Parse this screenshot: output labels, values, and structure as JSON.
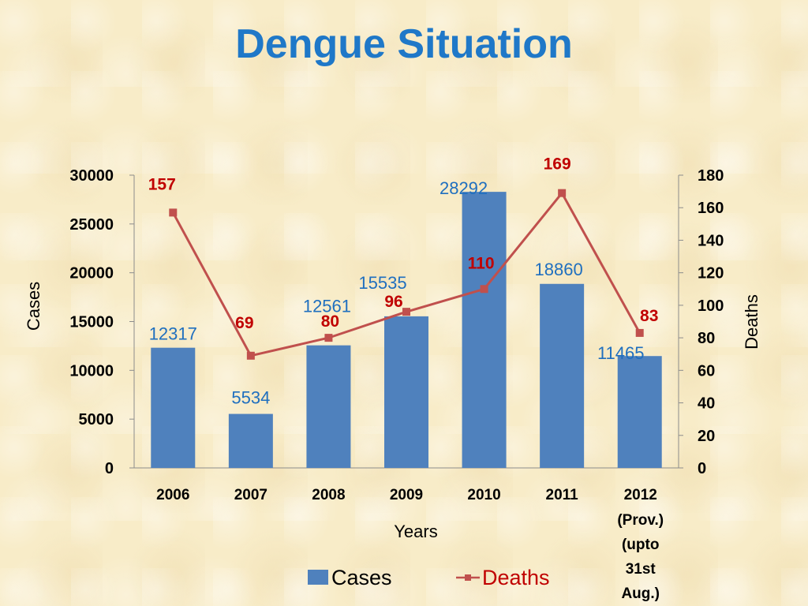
{
  "title": "Dengue Situation",
  "chart_data": {
    "type": "bar",
    "title": "Dengue Situation",
    "categories": [
      "2006",
      "2007",
      "2008",
      "2009",
      "2010",
      "2011",
      "2012"
    ],
    "category_extra_lines": {
      "2012": [
        "(Prov.)",
        "(upto",
        "31st",
        "Aug.)"
      ]
    },
    "xlabel": "Years",
    "ylabel": "Cases",
    "y2label": "Deaths",
    "ylim": [
      0,
      30000
    ],
    "y2lim": [
      0,
      180
    ],
    "y_ticks": [
      0,
      5000,
      10000,
      15000,
      20000,
      25000,
      30000
    ],
    "y2_ticks": [
      0,
      20,
      40,
      60,
      80,
      100,
      120,
      140,
      160,
      180
    ],
    "series": [
      {
        "name": "Cases",
        "type": "bar",
        "axis": "left",
        "color": "#4f81bd",
        "label_color": "#1f6fbf",
        "values": [
          12317,
          5534,
          12561,
          15535,
          28292,
          18860,
          11465
        ]
      },
      {
        "name": "Deaths",
        "type": "line",
        "axis": "right",
        "color": "#c0504d",
        "label_color": "#c00000",
        "values": [
          157,
          69,
          80,
          96,
          110,
          169,
          83
        ]
      }
    ],
    "grid": false,
    "legend_position": "bottom"
  }
}
